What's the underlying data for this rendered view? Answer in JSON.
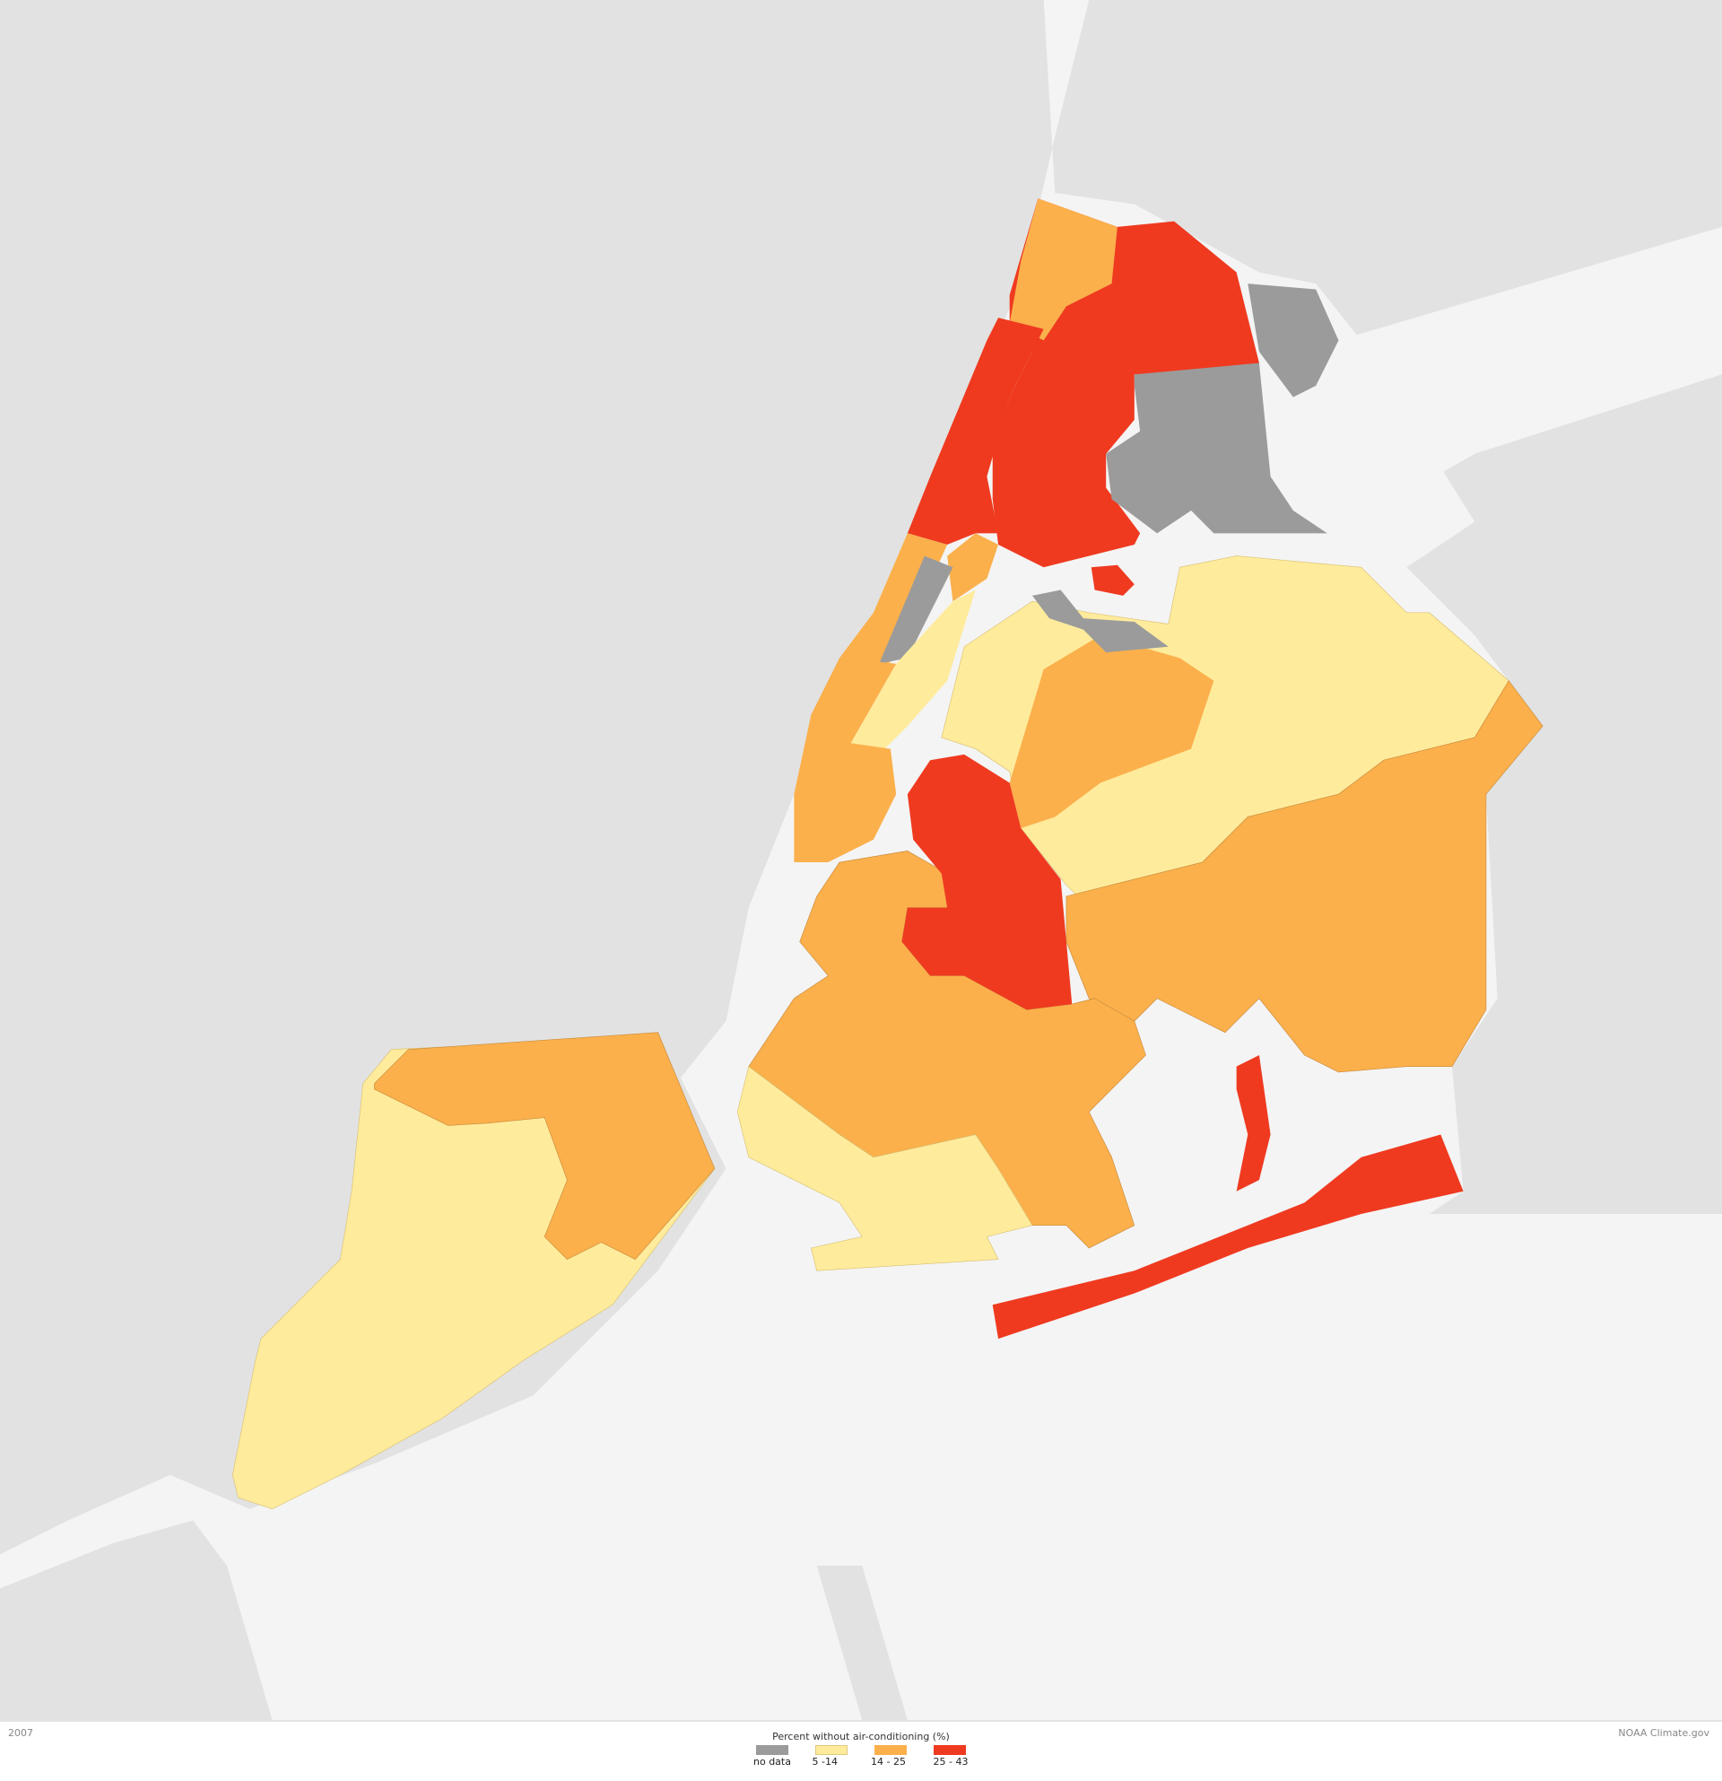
{
  "map": {
    "colors": {
      "land": "#e2e2e2",
      "water": "#f4f4f4",
      "no_data": "#9b9b9b",
      "class_5_14": "#ffeb9c",
      "class_14_25": "#fbb04c",
      "class_25_43": "#ef3a20"
    }
  },
  "footer": {
    "year": "2007",
    "credit": "NOAA Climate.gov"
  },
  "legend": {
    "title": "Percent without air-conditioning (%)",
    "items": [
      {
        "label": "no data",
        "color": "#9b9b9b"
      },
      {
        "label": "5 -14",
        "color": "#ffeb9c"
      },
      {
        "label": "14 - 25",
        "color": "#fbb04c"
      },
      {
        "label": "25 - 43",
        "color": "#ef3a20"
      }
    ]
  }
}
